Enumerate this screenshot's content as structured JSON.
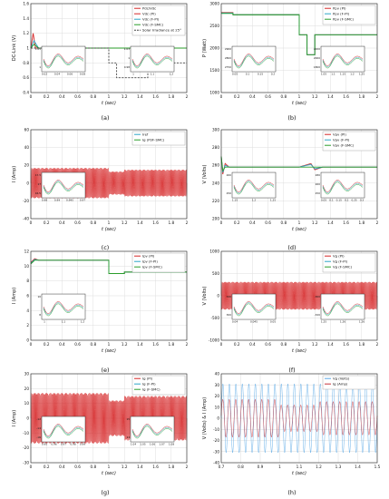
{
  "figure": {
    "panels": [
      {
        "id": "a",
        "caption": "(a)",
        "xlabel": "t (sec)",
        "ylabel": "DC-Link (V)"
      },
      {
        "id": "b",
        "caption": "(b)",
        "xlabel": "t (sec)",
        "ylabel": "P (Watt)"
      },
      {
        "id": "c",
        "caption": "(c)",
        "xlabel": "t (sec)",
        "ylabel": "I (Amp)"
      },
      {
        "id": "d",
        "caption": "(d)",
        "xlabel": "t (sec)",
        "ylabel": "V (Volts)"
      },
      {
        "id": "e",
        "caption": "(e)",
        "xlabel": "t (sec)",
        "ylabel": "I (Amp)"
      },
      {
        "id": "f",
        "caption": "(f)",
        "xlabel": "t (sec)",
        "ylabel": "V (Volts)"
      },
      {
        "id": "g",
        "caption": "(g)",
        "xlabel": "t (sec)",
        "ylabel": "I (Amp)"
      },
      {
        "id": "h",
        "caption": "(h)",
        "xlabel": "t (sec)",
        "ylabel": "V (Volts) & I (Amp)"
      }
    ]
  },
  "colors": {
    "pi": "#d62728",
    "fpi": "#2ca6c8",
    "fsmc": "#2a9d2a",
    "vg": "#5aa9e6",
    "ig": "#c7343b",
    "irr": "#444444",
    "axis": "#222222",
    "grid": "#dddddd"
  },
  "chart_data": [
    {
      "id": "a",
      "type": "line",
      "xlabel": "t (sec)",
      "ylabel": "DC-Link (V)",
      "xlim": [
        0,
        2
      ],
      "ylim": [
        0.4,
        1.6
      ],
      "xticks": [
        "0",
        "0.2",
        "0.4",
        "0.6",
        "0.8",
        "1",
        "1.2",
        "1.4",
        "1.6",
        "1.8",
        "2"
      ],
      "yticks": [
        "0.4",
        "0.6",
        "0.8",
        "1",
        "1.2",
        "1.4",
        "1.6"
      ],
      "legend": [
        "Pdc/Vdc",
        "Vdc (PI)",
        "Vdc (F-PI)",
        "Vdc (F-SMC)",
        "Solar Irradiance at 25°"
      ],
      "legend_position": "top-right",
      "series": [
        {
          "name": "Vdc (PI)",
          "x": [
            0,
            0.03,
            0.06,
            0.1,
            1,
            1.5,
            2
          ],
          "y": [
            1.0,
            1.2,
            1.0,
            1.0,
            1.0,
            1.0,
            1.0
          ]
        },
        {
          "name": "Vdc (F-PI)",
          "x": [
            0,
            0.04,
            0.1,
            1,
            2
          ],
          "y": [
            1.0,
            1.1,
            1.0,
            1.0,
            1.0
          ]
        },
        {
          "name": "Vdc (F-SMC)",
          "x": [
            0,
            0.04,
            0.1,
            1,
            2
          ],
          "y": [
            1.0,
            1.05,
            1.0,
            1.0,
            1.0
          ]
        },
        {
          "name": "Solar Irradiance at 25°",
          "x": [
            0,
            1,
            1,
            1.1,
            1.1,
            1.2,
            1.2,
            1.5,
            1.5,
            2
          ],
          "y": [
            1.0,
            1.0,
            0.8,
            0.8,
            0.6,
            0.6,
            0.6,
            0.6,
            0.8,
            0.8
          ]
        }
      ],
      "insets": [
        {
          "xticks": [
            "0.02",
            "0.04",
            "0.06",
            "0.08"
          ],
          "yticks": [
            "1.05",
            "1"
          ]
        },
        {
          "xticks": [
            "1",
            "1.1",
            "1.2"
          ],
          "yticks": [
            "1.03",
            "1",
            "0.98"
          ]
        }
      ]
    },
    {
      "id": "b",
      "type": "line",
      "xlabel": "t (sec)",
      "ylabel": "P (Watt)",
      "xlim": [
        0,
        2
      ],
      "ylim": [
        1000,
        3000
      ],
      "xticks": [
        "0",
        "0.2",
        "0.4",
        "0.6",
        "0.8",
        "1",
        "1.2",
        "1.4",
        "1.6",
        "1.8",
        "2"
      ],
      "yticks": [
        "1000",
        "1500",
        "2000",
        "2500",
        "3000"
      ],
      "legend": [
        "Ppv (PI)",
        "Ppv (F-PI)",
        "Ppv (F-SMC)"
      ],
      "legend_position": "top-right",
      "series": [
        {
          "name": "Ppv (PI)",
          "x": [
            0,
            0.15,
            0.15,
            1,
            1,
            1.1,
            1.1,
            1.2,
            1.2,
            1.5,
            1.5,
            2
          ],
          "y": [
            2800,
            2800,
            2750,
            2750,
            2300,
            2300,
            1850,
            1850,
            2300,
            2300,
            2300,
            2300
          ]
        },
        {
          "name": "Ppv (F-PI)",
          "x": [
            0,
            0.15,
            0.15,
            1,
            1,
            1.1,
            1.1,
            1.2,
            1.2,
            2
          ],
          "y": [
            2790,
            2790,
            2750,
            2750,
            2300,
            2300,
            1850,
            1850,
            2300,
            2300
          ]
        },
        {
          "name": "Ppv (F-SMC)",
          "x": [
            0,
            0.15,
            0.15,
            1,
            1,
            1.1,
            1.1,
            1.2,
            1.2,
            2
          ],
          "y": [
            2780,
            2780,
            2750,
            2750,
            2300,
            2300,
            1850,
            1850,
            2300,
            2300
          ]
        }
      ],
      "insets": [
        {
          "xticks": [
            "0.05",
            "0.1",
            "0.15",
            "0.2"
          ],
          "yticks": [
            "2900",
            "2800",
            "2750"
          ]
        },
        {
          "xticks": [
            "1.05",
            "1.1",
            "1.15",
            "1.2",
            "1.25"
          ],
          "yticks": [
            "2200",
            "2000",
            "1800"
          ]
        }
      ]
    },
    {
      "id": "c",
      "type": "line",
      "xlabel": "t (sec)",
      "ylabel": "I (Amp)",
      "xlim": [
        0,
        2
      ],
      "ylim": [
        -40,
        60
      ],
      "xticks": [
        "0",
        "0.2",
        "0.4",
        "0.6",
        "0.8",
        "1",
        "1.2",
        "1.4",
        "1.6",
        "1.8",
        "2"
      ],
      "yticks": [
        "-40",
        "-20",
        "0",
        "20",
        "40",
        "60"
      ],
      "legend": [
        "Iref",
        "Ig (PI/F-SMC)"
      ],
      "legend_position": "top-right",
      "series": [
        {
          "name": "Ig",
          "amplitude_segments": [
            {
              "x": [
                0,
                1
              ],
              "amplitude": 17
            },
            {
              "x": [
                1,
                1.2
              ],
              "amplitude": 13
            },
            {
              "x": [
                1.2,
                2
              ],
              "amplitude": 15
            }
          ],
          "frequency_hz": 50
        }
      ],
      "insets": [
        {
          "xticks": [
            "0.98",
            "0.99",
            "0.995",
            "0.97"
          ],
          "yticks": [
            "17.5",
            "17",
            "16.5"
          ]
        }
      ]
    },
    {
      "id": "d",
      "type": "line",
      "xlabel": "t (sec)",
      "ylabel": "V (Volts)",
      "xlim": [
        0,
        2
      ],
      "ylim": [
        200,
        300
      ],
      "xticks": [
        "0",
        "0.2",
        "0.4",
        "0.6",
        "0.8",
        "1",
        "1.2",
        "1.4",
        "1.6",
        "1.8",
        "2"
      ],
      "yticks": [
        "200",
        "220",
        "240",
        "260",
        "280",
        "300"
      ],
      "legend": [
        "Vpv (PI)",
        "Vpv (F-PI)",
        "Vpv (F-SMC)"
      ],
      "legend_position": "top-right",
      "series": [
        {
          "name": "Vpv (PI)",
          "x": [
            0,
            0.02,
            0.05,
            0.1,
            0.2,
            1,
            1.15,
            1.2,
            1.3,
            2
          ],
          "y": [
            270,
            250,
            262,
            258,
            258,
            258,
            262,
            255,
            258,
            258
          ]
        },
        {
          "name": "Vpv (F-PI)",
          "x": [
            0,
            0.02,
            0.05,
            0.1,
            1,
            1.15,
            1.2,
            1.3,
            2
          ],
          "y": [
            270,
            252,
            260,
            258,
            258,
            261,
            256,
            258,
            258
          ]
        },
        {
          "name": "Vpv (F-SMC)",
          "x": [
            0,
            0.02,
            0.05,
            0.1,
            1,
            2
          ],
          "y": [
            270,
            254,
            258,
            258,
            258,
            258
          ]
        }
      ],
      "insets": [
        {
          "xticks": [
            "1.15",
            "1.2",
            "1.25"
          ],
          "yticks": [
            "260",
            "250"
          ]
        },
        {
          "xticks": [
            "0.05",
            "0.1",
            "0.15",
            "0.2",
            "0.25",
            "0.3"
          ],
          "yticks": [
            "280",
            "260",
            "250"
          ]
        }
      ]
    },
    {
      "id": "e",
      "type": "line",
      "xlabel": "t (sec)",
      "ylabel": "I (Amp)",
      "xlim": [
        0,
        2
      ],
      "ylim": [
        0,
        12
      ],
      "xticks": [
        "0",
        "0.2",
        "0.4",
        "0.6",
        "0.8",
        "1",
        "1.2",
        "1.4",
        "1.6",
        "1.8",
        "2"
      ],
      "yticks": [
        "0",
        "2",
        "4",
        "6",
        "8",
        "10",
        "12"
      ],
      "legend": [
        "Ipv (PI)",
        "Ipv (F-PI)",
        "Ipv (F-SMC)"
      ],
      "legend_position": "top-right",
      "series": [
        {
          "name": "Ipv (PI)",
          "x": [
            0,
            0.05,
            0.1,
            1,
            1,
            1.2,
            1.2,
            2
          ],
          "y": [
            10.5,
            11,
            10.8,
            10.8,
            9,
            9,
            9.2,
            9.2
          ]
        },
        {
          "name": "Ipv (F-PI)",
          "x": [
            0,
            0.05,
            0.1,
            1,
            1,
            1.2,
            1.2,
            2
          ],
          "y": [
            10.4,
            10.9,
            10.8,
            10.8,
            9,
            9,
            9.2,
            9.2
          ]
        },
        {
          "name": "Ipv (F-SMC)",
          "x": [
            0,
            0.05,
            0.1,
            1,
            1,
            1.2,
            1.2,
            2
          ],
          "y": [
            10.3,
            10.8,
            10.8,
            10.8,
            9,
            9,
            9.2,
            9.2
          ]
        }
      ],
      "insets": [
        {
          "xticks": [
            "1",
            "1.1",
            "1.2"
          ],
          "yticks": [
            "10",
            "8"
          ]
        }
      ]
    },
    {
      "id": "f",
      "type": "line",
      "xlabel": "t (sec)",
      "ylabel": "V (Volts)",
      "xlim": [
        0,
        2
      ],
      "ylim": [
        -1000,
        1000
      ],
      "xticks": [
        "0",
        "0.2",
        "0.4",
        "0.6",
        "0.8",
        "1",
        "1.2",
        "1.4",
        "1.6",
        "1.8",
        "2"
      ],
      "yticks": [
        "-1000",
        "-500",
        "0",
        "500",
        "1000"
      ],
      "legend": [
        "Vg (PI)",
        "Vg (F-PI)",
        "Vg (F-SMC)"
      ],
      "legend_position": "top-right",
      "series": [
        {
          "name": "Vg",
          "amplitude": 311,
          "frequency_hz": 50
        }
      ],
      "insets": [
        {
          "xticks": [
            "0.04",
            "0.045",
            "0.05"
          ],
          "yticks": [
            "320",
            "300"
          ]
        },
        {
          "xticks": [
            "1.25",
            "1.26",
            "1.26"
          ],
          "yticks": [
            "-300",
            "-320"
          ]
        }
      ]
    },
    {
      "id": "g",
      "type": "line",
      "xlabel": "t (sec)",
      "ylabel": "I (Amp)",
      "xlim": [
        0,
        2
      ],
      "ylim": [
        -30,
        30
      ],
      "xticks": [
        "0",
        "0.2",
        "0.4",
        "0.6",
        "0.8",
        "1",
        "1.2",
        "1.4",
        "1.6",
        "1.8",
        "2"
      ],
      "yticks": [
        "-30",
        "-20",
        "-10",
        "0",
        "10",
        "20",
        "30"
      ],
      "legend": [
        "Ig (PI)",
        "Ig (F-PI)",
        "Ig (F-SMC)"
      ],
      "legend_position": "top-right",
      "series": [
        {
          "name": "Ig",
          "amplitude_segments": [
            {
              "x": [
                0,
                1
              ],
              "amplitude": 17
            },
            {
              "x": [
                1,
                1.2
              ],
              "amplitude": 12
            },
            {
              "x": [
                1.2,
                2
              ],
              "amplitude": 15
            }
          ],
          "frequency_hz": 50
        }
      ],
      "insets": [
        {
          "xticks": [
            "0.95",
            "0.96",
            "0.97",
            "0.98",
            "0.99"
          ],
          "yticks": [
            "-12",
            "-14",
            "-16"
          ]
        },
        {
          "xticks": [
            "1.04",
            "1.05",
            "1.06",
            "1.07",
            "1.08"
          ],
          "yticks": [
            "15",
            "14"
          ]
        }
      ]
    },
    {
      "id": "h",
      "type": "line",
      "xlabel": "t (sec)",
      "ylabel": "V (Volts) & I (Amp)",
      "xlim": [
        0.7,
        1.5
      ],
      "ylim": [
        -40,
        40
      ],
      "xticks": [
        "0.7",
        "0.8",
        "0.9",
        "1",
        "1.1",
        "1.2",
        "1.3",
        "1.4",
        "1.5"
      ],
      "yticks": [
        "-40",
        "-30",
        "-20",
        "-10",
        "0",
        "10",
        "20",
        "30",
        "40"
      ],
      "legend": [
        "Vg (Volts)",
        "Ig (Amp)"
      ],
      "legend_position": "top-right",
      "series": [
        {
          "name": "Vg (Volts)",
          "amplitude": 31,
          "frequency_hz": 50
        },
        {
          "name": "Ig (Amp)",
          "amplitude_segments": [
            {
              "x": [
                0.7,
                1
              ],
              "amplitude": 17
            },
            {
              "x": [
                1,
                1.2
              ],
              "amplitude": 12
            },
            {
              "x": [
                1.2,
                1.5
              ],
              "amplitude": 15
            }
          ],
          "frequency_hz": 50
        }
      ],
      "insets": []
    }
  ]
}
